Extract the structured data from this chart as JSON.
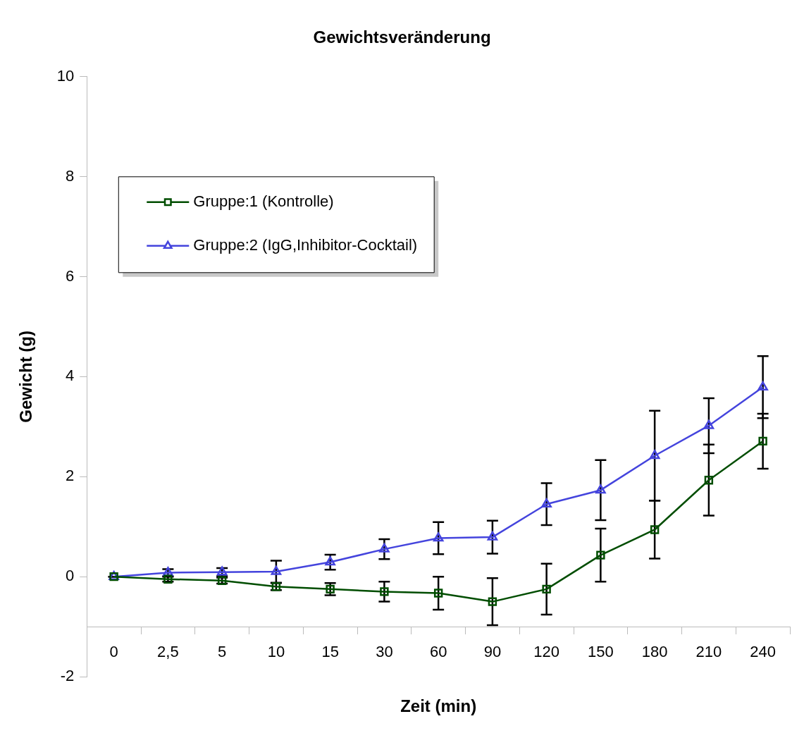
{
  "chart_data": {
    "type": "line",
    "title": "Gewichtsveränderung",
    "xlabel": "Zeit (min)",
    "ylabel": "Gewicht (g)",
    "categories": [
      "0",
      "2,5",
      "5",
      "10",
      "15",
      "30",
      "60",
      "90",
      "120",
      "150",
      "180",
      "210",
      "240"
    ],
    "series": [
      {
        "name": "Gruppe:1 (Kontrolle)",
        "color": "#004d00",
        "marker": "square",
        "values": [
          0,
          -0.05,
          -0.08,
          -0.2,
          -0.25,
          -0.3,
          -0.33,
          -0.5,
          -0.25,
          0.43,
          0.94,
          1.93,
          2.71
        ],
        "errors": [
          0,
          0.05,
          0.06,
          0.07,
          0.12,
          0.2,
          0.33,
          0.47,
          0.51,
          0.53,
          0.58,
          0.71,
          0.55
        ]
      },
      {
        "name": "Gruppe:2 (IgG,Inhibitor-Cocktail)",
        "color": "#4444dd",
        "marker": "triangle",
        "values": [
          0,
          0.08,
          0.09,
          0.1,
          0.29,
          0.55,
          0.77,
          0.79,
          1.45,
          1.73,
          2.42,
          3.02,
          3.79
        ],
        "errors": [
          0,
          0.07,
          0.08,
          0.22,
          0.15,
          0.2,
          0.32,
          0.33,
          0.42,
          0.6,
          0.9,
          0.55,
          0.62
        ]
      }
    ],
    "ylim": [
      -2,
      10
    ],
    "yticks": [
      -2,
      0,
      2,
      4,
      6,
      8,
      10
    ],
    "grid": false,
    "legend": "top left",
    "line_style": "solid"
  }
}
